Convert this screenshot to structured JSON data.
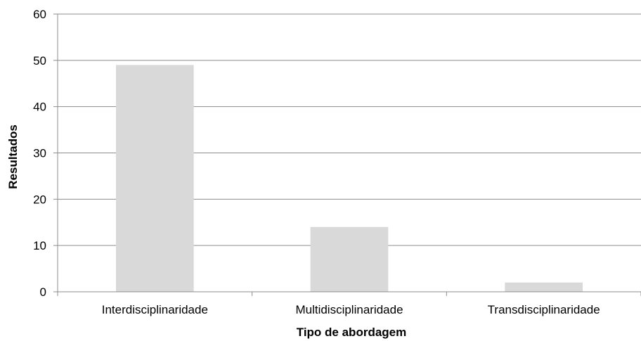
{
  "chart_data": {
    "type": "bar",
    "title": "",
    "xlabel": "Tipo de abordagem",
    "ylabel": "Resultados",
    "categories": [
      "Interdisciplinaridade",
      "Multidisciplinaridade",
      "Transdisciplinaridade"
    ],
    "values": [
      49,
      14,
      2
    ],
    "ylim": [
      0,
      60
    ],
    "yticks": [
      0,
      10,
      20,
      30,
      40,
      50,
      60
    ],
    "ytick_labels": [
      "0",
      "10",
      "20",
      "30",
      "40",
      "50",
      "60"
    ],
    "grid": true,
    "legend": "none",
    "colors": {
      "bar": "#d9d9d9",
      "grid": "#8c8c8c",
      "axis": "#8c8c8c",
      "text": "#000000"
    }
  }
}
